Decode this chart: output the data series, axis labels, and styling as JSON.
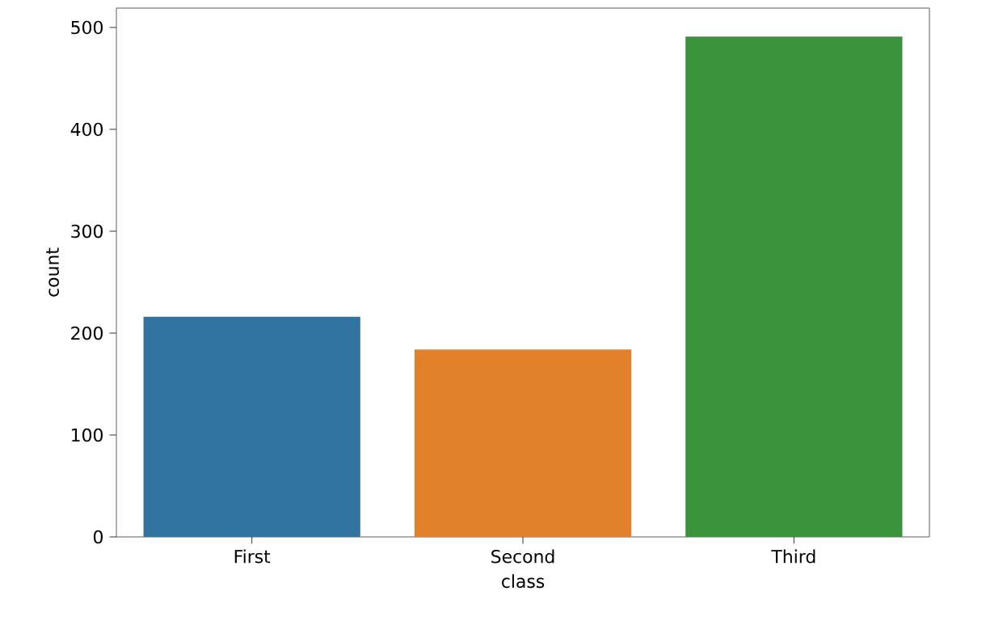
{
  "chart_data": {
    "type": "bar",
    "xlabel": "class",
    "ylabel": "count",
    "categories": [
      "First",
      "Second",
      "Third"
    ],
    "values": [
      216,
      184,
      491
    ],
    "colors": [
      "#3274a1",
      "#e1812c",
      "#3a923a"
    ],
    "ylim": [
      0,
      519
    ],
    "yticks": [
      0,
      100,
      200,
      300,
      400,
      500
    ],
    "grid": false
  }
}
